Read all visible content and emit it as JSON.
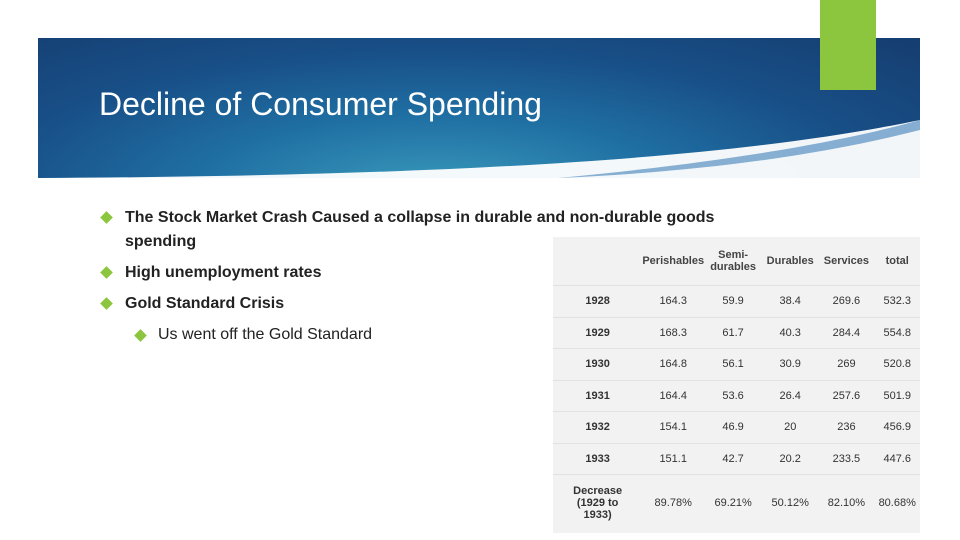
{
  "title": "Decline of Consumer Spending",
  "bullets": [
    "The Stock Market Crash Caused a collapse in durable and non-durable goods spending",
    "High unemployment rates",
    "Gold Standard Crisis"
  ],
  "sub_bullets": [
    "Us went off the Gold Standard"
  ],
  "table": {
    "header": [
      "",
      "Perishables",
      "Semi-durables",
      "Durables",
      "Services",
      "total"
    ],
    "rows": [
      [
        "1928",
        "164.3",
        "59.9",
        "38.4",
        "269.6",
        "532.3"
      ],
      [
        "1929",
        "168.3",
        "61.7",
        "40.3",
        "284.4",
        "554.8"
      ],
      [
        "1930",
        "164.8",
        "56.1",
        "30.9",
        "269",
        "520.8"
      ],
      [
        "1931",
        "164.4",
        "53.6",
        "26.4",
        "257.6",
        "501.9"
      ],
      [
        "1932",
        "154.1",
        "46.9",
        "20",
        "236",
        "456.9"
      ],
      [
        "1933",
        "151.1",
        "42.7",
        "20.2",
        "233.5",
        "447.6"
      ],
      [
        "Decrease (1929 to 1933)",
        "89.78%",
        "69.21%",
        "50.12%",
        "82.10%",
        "80.68%"
      ]
    ]
  }
}
